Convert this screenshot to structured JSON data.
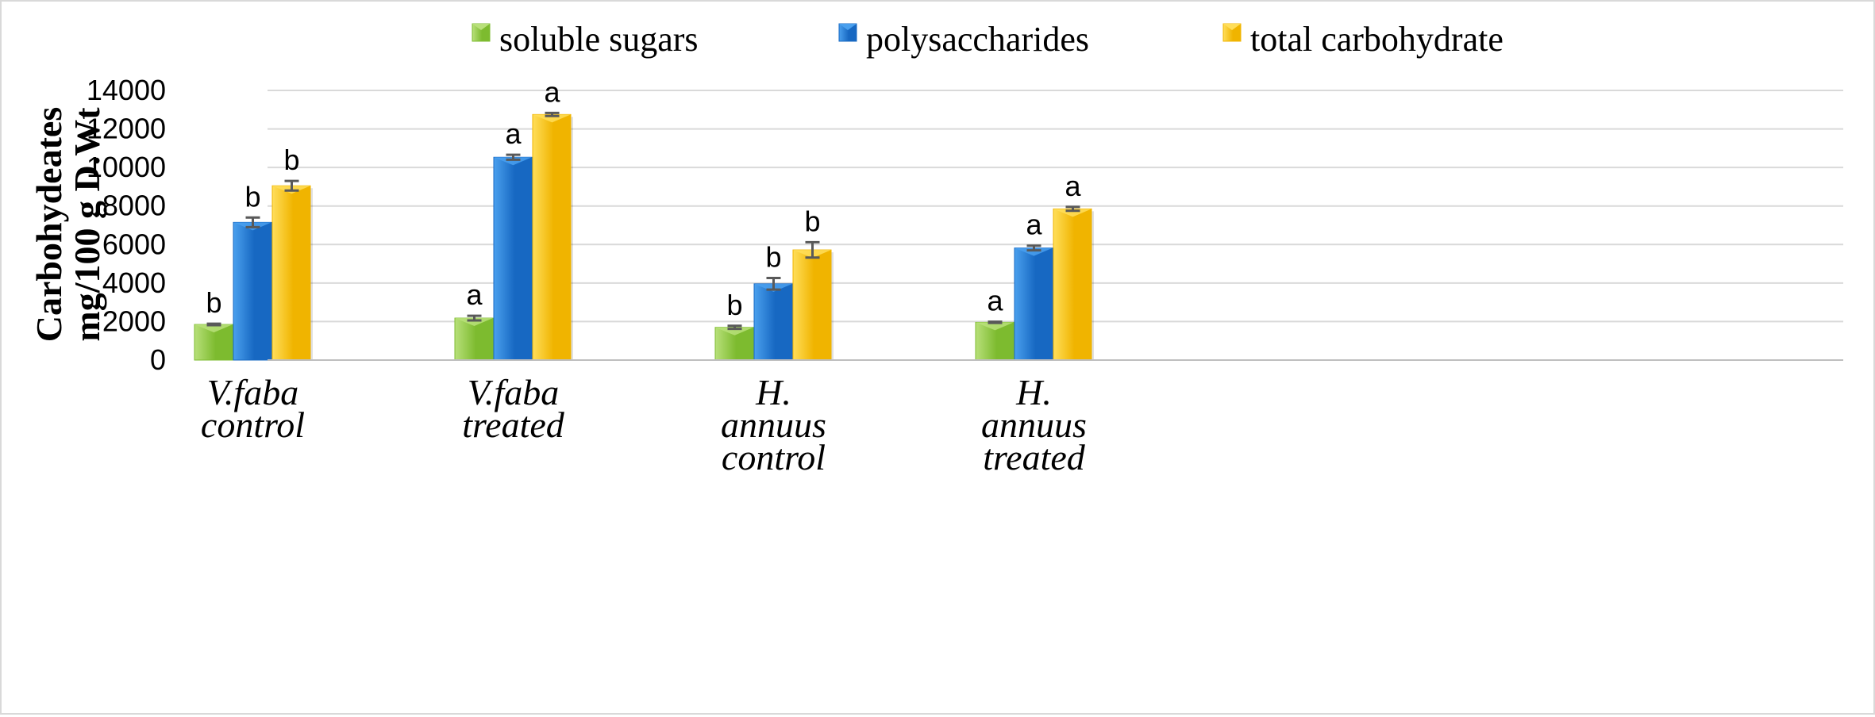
{
  "chart_data": {
    "type": "bar",
    "title": "",
    "xlabel": "",
    "ylabel": [
      "Carbohydeates",
      "mg/100 g D.Wt"
    ],
    "ylim": [
      0,
      14000
    ],
    "yticks": [
      0,
      2000,
      4000,
      6000,
      8000,
      10000,
      12000,
      14000
    ],
    "grid": true,
    "legend_position": "top",
    "categories": [
      [
        "V.faba",
        "control"
      ],
      [
        "V.faba",
        "treated"
      ],
      [
        "H.",
        "annuus",
        "control"
      ],
      [
        "H.",
        "annuus",
        "treated"
      ]
    ],
    "series": [
      {
        "name": "soluble sugars",
        "color": "#7dbb2f",
        "light": "#b8e07a",
        "values": [
          1850,
          2180,
          1700,
          1960
        ],
        "errors": [
          40,
          120,
          80,
          30
        ],
        "labels": [
          "b",
          "a",
          "b",
          "a"
        ]
      },
      {
        "name": "polysaccharides",
        "color": "#1768c2",
        "light": "#4aa0ee",
        "values": [
          7150,
          10530,
          3960,
          5820
        ],
        "errors": [
          250,
          130,
          300,
          120
        ],
        "labels": [
          "b",
          "a",
          "b",
          "a"
        ]
      },
      {
        "name": "total carbohydrate",
        "color": "#f0b400",
        "light": "#ffde5a",
        "values": [
          9050,
          12750,
          5720,
          7850
        ],
        "errors": [
          250,
          80,
          400,
          100
        ],
        "labels": [
          "b",
          "a",
          "b",
          "a"
        ]
      }
    ]
  }
}
